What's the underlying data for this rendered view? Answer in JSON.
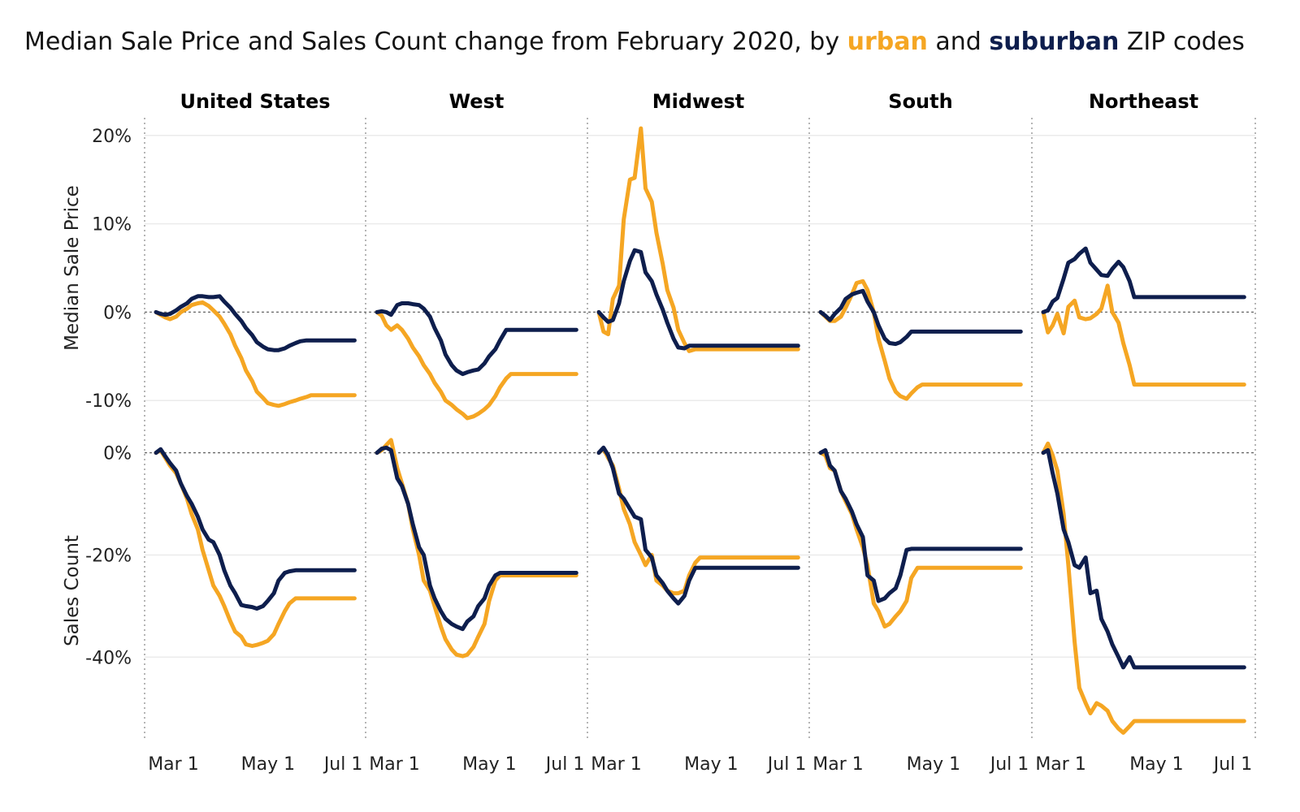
{
  "title": {
    "prefix": "Median Sale Price and Sales Count change from February 2020, by ",
    "urban_word": "urban",
    "middle": " and ",
    "suburban_word": "suburban",
    "suffix": " ZIP codes"
  },
  "colors": {
    "urban": "#F5A623",
    "suburban": "#0E1E4D",
    "grid": "#ebebeb",
    "zero_line": "#666666",
    "panel_divider": "#b5b5b5"
  },
  "chart_data": {
    "type": "line",
    "x_range": [
      "2020-02-24",
      "2020-07-05"
    ],
    "x_ticks": [
      "Mar 1",
      "May 1",
      "Jul 1"
    ],
    "x_tick_dates": [
      "2020-03-01",
      "2020-05-01",
      "2020-07-01"
    ],
    "facets": [
      "United States",
      "West",
      "Midwest",
      "South",
      "Northeast"
    ],
    "grid": true,
    "rows": [
      {
        "ylabel": "Median Sale Price",
        "ylim": [
          -12,
          22
        ],
        "y_ticks": [
          20,
          10,
          0,
          -10
        ],
        "y_tick_labels": [
          "20%",
          "10%",
          "0%",
          "-10%"
        ]
      },
      {
        "ylabel": "Sales Count",
        "ylim": [
          -56,
          2
        ],
        "y_ticks": [
          0,
          -20,
          -40
        ],
        "y_tick_labels": [
          "0%",
          "-20%",
          "-40%"
        ]
      }
    ],
    "dates": [
      "2020-02-24",
      "2020-02-27",
      "2020-03-01",
      "2020-03-04",
      "2020-03-08",
      "2020-03-11",
      "2020-03-15",
      "2020-03-18",
      "2020-03-22",
      "2020-03-25",
      "2020-03-29",
      "2020-04-01",
      "2020-04-05",
      "2020-04-08",
      "2020-04-12",
      "2020-04-15",
      "2020-04-19",
      "2020-04-22",
      "2020-04-26",
      "2020-04-29",
      "2020-05-03",
      "2020-05-06",
      "2020-05-10",
      "2020-05-13",
      "2020-05-17",
      "2020-05-20",
      "2020-05-24",
      "2020-05-27",
      "2020-05-31",
      "2020-06-03",
      "2020-06-07",
      "2020-06-10",
      "2020-06-14",
      "2020-06-17",
      "2020-06-21",
      "2020-06-24",
      "2020-06-28",
      "2020-07-01",
      "2020-07-05"
    ],
    "series": [
      {
        "facet": "United States",
        "row": "Median Sale Price",
        "name": "urban",
        "values": [
          0,
          -0.3,
          -0.6,
          -0.8,
          -0.5,
          0,
          0.4,
          0.8,
          1,
          1.1,
          0.7,
          0.2,
          -0.5,
          -1.3,
          -2.5,
          -3.8,
          -5.2,
          -6.6,
          -7.8,
          -9,
          -9.7,
          -10.3,
          -10.5,
          -10.6,
          -10.4,
          -10.2,
          -10,
          -9.8,
          -9.6,
          -9.4,
          -9.4,
          -9.4,
          -9.4,
          -9.4,
          -9.4,
          -9.4,
          -9.4,
          -9.4,
          -9.4
        ]
      },
      {
        "facet": "United States",
        "row": "Median Sale Price",
        "name": "suburban",
        "values": [
          0,
          -0.2,
          -0.3,
          -0.2,
          0.2,
          0.6,
          1,
          1.5,
          1.8,
          1.8,
          1.7,
          1.7,
          1.8,
          1.2,
          0.5,
          -0.2,
          -1,
          -1.8,
          -2.6,
          -3.4,
          -3.9,
          -4.2,
          -4.3,
          -4.3,
          -4.1,
          -3.8,
          -3.5,
          -3.3,
          -3.2,
          -3.2,
          -3.2,
          -3.2,
          -3.2,
          -3.2,
          -3.2,
          -3.2,
          -3.2,
          -3.2,
          -3.2
        ]
      },
      {
        "facet": "United States",
        "row": "Sales Count",
        "name": "urban",
        "values": [
          0,
          0.5,
          -1,
          -2.5,
          -4,
          -6,
          -9,
          -12,
          -15,
          -19,
          -23,
          -26,
          -28,
          -30,
          -33,
          -35,
          -36,
          -37.5,
          -37.8,
          -37.6,
          -37.2,
          -36.8,
          -35.5,
          -33.5,
          -31,
          -29.5,
          -28.5,
          -28.5,
          -28.5,
          -28.5,
          -28.5,
          -28.5,
          -28.5,
          -28.5,
          -28.5,
          -28.5,
          -28.5,
          -28.5,
          -28.5
        ]
      },
      {
        "facet": "United States",
        "row": "Sales Count",
        "name": "suburban",
        "values": [
          0,
          0.7,
          -0.7,
          -2,
          -3.5,
          -6,
          -8.5,
          -10,
          -12.5,
          -15,
          -17,
          -17.5,
          -20,
          -23,
          -26,
          -27.5,
          -29.8,
          -30,
          -30.2,
          -30.5,
          -30,
          -29,
          -27.5,
          -25,
          -23.5,
          -23.2,
          -23,
          -23,
          -23,
          -23,
          -23,
          -23,
          -23,
          -23,
          -23,
          -23,
          -23,
          -23,
          -23
        ]
      },
      {
        "facet": "West",
        "row": "Median Sale Price",
        "name": "urban",
        "values": [
          0,
          -0.4,
          -1.5,
          -2,
          -1.5,
          -2,
          -3,
          -4,
          -5,
          -6,
          -7,
          -8,
          -9,
          -10,
          -10.5,
          -11,
          -11.5,
          -12,
          -11.8,
          -11.5,
          -11,
          -10.5,
          -9.5,
          -8.5,
          -7.5,
          -7,
          -7,
          -7,
          -7,
          -7,
          -7,
          -7,
          -7,
          -7,
          -7,
          -7,
          -7,
          -7,
          -7
        ]
      },
      {
        "facet": "West",
        "row": "Median Sale Price",
        "name": "suburban",
        "values": [
          0,
          0.1,
          0,
          -0.3,
          0.8,
          1,
          1,
          0.9,
          0.8,
          0.4,
          -0.5,
          -1.8,
          -3.2,
          -4.8,
          -6,
          -6.6,
          -7,
          -6.8,
          -6.6,
          -6.5,
          -5.8,
          -5,
          -4.2,
          -3.2,
          -2,
          -2,
          -2,
          -2,
          -2,
          -2,
          -2,
          -2,
          -2,
          -2,
          -2,
          -2,
          -2,
          -2,
          -2
        ]
      },
      {
        "facet": "West",
        "row": "Sales Count",
        "name": "urban",
        "values": [
          0,
          0.5,
          1.5,
          2.5,
          -3,
          -6,
          -10,
          -15,
          -20,
          -25,
          -27,
          -30,
          -34,
          -36.5,
          -38.5,
          -39.5,
          -39.8,
          -39.5,
          -38,
          -36,
          -33.5,
          -29,
          -25,
          -24,
          -24,
          -24,
          -24,
          -24,
          -24,
          -24,
          -24,
          -24,
          -24,
          -24,
          -24,
          -24,
          -24,
          -24,
          -24
        ]
      },
      {
        "facet": "West",
        "row": "Sales Count",
        "name": "suburban",
        "values": [
          0,
          0.8,
          1,
          0.5,
          -5,
          -6.5,
          -10,
          -14,
          -18.5,
          -20,
          -26,
          -28.5,
          -31,
          -32.5,
          -33.5,
          -34,
          -34.5,
          -33,
          -32,
          -30,
          -28.5,
          -26,
          -24,
          -23.5,
          -23.5,
          -23.5,
          -23.5,
          -23.5,
          -23.5,
          -23.5,
          -23.5,
          -23.5,
          -23.5,
          -23.5,
          -23.5,
          -23.5,
          -23.5,
          -23.5,
          -23.5
        ]
      },
      {
        "facet": "Midwest",
        "row": "Median Sale Price",
        "name": "urban",
        "values": [
          0,
          -2.2,
          -2.5,
          1.5,
          3,
          10.5,
          15,
          15.2,
          20.8,
          14,
          12.5,
          9,
          5.5,
          2.5,
          0.5,
          -2,
          -3.5,
          -4.4,
          -4.2,
          -4.2,
          -4.2,
          -4.2,
          -4.2,
          -4.2,
          -4.2,
          -4.2,
          -4.2,
          -4.2,
          -4.2,
          -4.2,
          -4.2,
          -4.2,
          -4.2,
          -4.2,
          -4.2,
          -4.2,
          -4.2,
          -4.2,
          -4.2
        ]
      },
      {
        "facet": "Midwest",
        "row": "Median Sale Price",
        "name": "suburban",
        "values": [
          0,
          -0.6,
          -1.1,
          -0.9,
          1,
          3.5,
          5.8,
          7,
          6.8,
          4.5,
          3.5,
          2,
          0.3,
          -1.2,
          -3,
          -4,
          -4.1,
          -3.8,
          -3.8,
          -3.8,
          -3.8,
          -3.8,
          -3.8,
          -3.8,
          -3.8,
          -3.8,
          -3.8,
          -3.8,
          -3.8,
          -3.8,
          -3.8,
          -3.8,
          -3.8,
          -3.8,
          -3.8,
          -3.8,
          -3.8,
          -3.8,
          -3.8
        ]
      },
      {
        "facet": "Midwest",
        "row": "Sales Count",
        "name": "urban",
        "values": [
          0,
          0.8,
          -1,
          -2.5,
          -7,
          -11,
          -14,
          -17.5,
          -20,
          -22,
          -20,
          -25,
          -26,
          -27,
          -27.5,
          -27.5,
          -27,
          -24,
          -21.5,
          -20.5,
          -20.5,
          -20.5,
          -20.5,
          -20.5,
          -20.5,
          -20.5,
          -20.5,
          -20.5,
          -20.5,
          -20.5,
          -20.5,
          -20.5,
          -20.5,
          -20.5,
          -20.5,
          -20.5,
          -20.5,
          -20.5,
          -20.5
        ]
      },
      {
        "facet": "Midwest",
        "row": "Sales Count",
        "name": "suburban",
        "values": [
          0,
          1,
          -0.5,
          -3,
          -8,
          -9,
          -11,
          -12.5,
          -13,
          -19,
          -20.5,
          -24,
          -25.5,
          -27,
          -28.5,
          -29.5,
          -28,
          -25,
          -22.5,
          -22.5,
          -22.5,
          -22.5,
          -22.5,
          -22.5,
          -22.5,
          -22.5,
          -22.5,
          -22.5,
          -22.5,
          -22.5,
          -22.5,
          -22.5,
          -22.5,
          -22.5,
          -22.5,
          -22.5,
          -22.5,
          -22.5,
          -22.5
        ]
      },
      {
        "facet": "South",
        "row": "Median Sale Price",
        "name": "urban",
        "values": [
          0,
          -0.5,
          -1,
          -1,
          -0.5,
          0.5,
          2,
          3.3,
          3.5,
          2.5,
          0,
          -3,
          -5.5,
          -7.5,
          -9,
          -9.5,
          -9.8,
          -9.2,
          -8.5,
          -8.2,
          -8.2,
          -8.2,
          -8.2,
          -8.2,
          -8.2,
          -8.2,
          -8.2,
          -8.2,
          -8.2,
          -8.2,
          -8.2,
          -8.2,
          -8.2,
          -8.2,
          -8.2,
          -8.2,
          -8.2,
          -8.2,
          -8.2
        ]
      },
      {
        "facet": "South",
        "row": "Median Sale Price",
        "name": "suburban",
        "values": [
          0,
          -0.4,
          -0.9,
          -0.2,
          0.5,
          1.5,
          2,
          2.2,
          2.4,
          1.2,
          0,
          -1.5,
          -3,
          -3.5,
          -3.6,
          -3.4,
          -2.8,
          -2.2,
          -2.2,
          -2.2,
          -2.2,
          -2.2,
          -2.2,
          -2.2,
          -2.2,
          -2.2,
          -2.2,
          -2.2,
          -2.2,
          -2.2,
          -2.2,
          -2.2,
          -2.2,
          -2.2,
          -2.2,
          -2.2,
          -2.2,
          -2.2,
          -2.2
        ]
      },
      {
        "facet": "South",
        "row": "Sales Count",
        "name": "urban",
        "values": [
          0,
          -0.5,
          -3,
          -3.5,
          -7.5,
          -9.5,
          -12,
          -15,
          -18.5,
          -22,
          -29.5,
          -31,
          -34,
          -33.5,
          -32,
          -31,
          -29,
          -24.5,
          -22.5,
          -22.5,
          -22.5,
          -22.5,
          -22.5,
          -22.5,
          -22.5,
          -22.5,
          -22.5,
          -22.5,
          -22.5,
          -22.5,
          -22.5,
          -22.5,
          -22.5,
          -22.5,
          -22.5,
          -22.5,
          -22.5,
          -22.5,
          -22.5
        ]
      },
      {
        "facet": "South",
        "row": "Sales Count",
        "name": "suburban",
        "values": [
          0,
          0.5,
          -2.5,
          -3.5,
          -7.5,
          -9,
          -11.5,
          -14,
          -16.5,
          -24,
          -25,
          -29,
          -28.5,
          -27.5,
          -26.5,
          -24,
          -19,
          -18.8,
          -18.8,
          -18.8,
          -18.8,
          -18.8,
          -18.8,
          -18.8,
          -18.8,
          -18.8,
          -18.8,
          -18.8,
          -18.8,
          -18.8,
          -18.8,
          -18.8,
          -18.8,
          -18.8,
          -18.8,
          -18.8,
          -18.8,
          -18.8,
          -18.8
        ]
      },
      {
        "facet": "Northeast",
        "row": "Median Sale Price",
        "name": "urban",
        "values": [
          0,
          -2.3,
          -1.5,
          -0.2,
          -2.4,
          0.6,
          1.3,
          -0.6,
          -0.8,
          -0.7,
          -0.2,
          0.4,
          3,
          0,
          -1.2,
          -3.5,
          -6,
          -8.2,
          -8.2,
          -8.2,
          -8.2,
          -8.2,
          -8.2,
          -8.2,
          -8.2,
          -8.2,
          -8.2,
          -8.2,
          -8.2,
          -8.2,
          -8.2,
          -8.2,
          -8.2,
          -8.2,
          -8.2,
          -8.2,
          -8.2,
          -8.2,
          -8.2
        ]
      },
      {
        "facet": "Northeast",
        "row": "Median Sale Price",
        "name": "suburban",
        "values": [
          0,
          0.2,
          1.2,
          1.6,
          3.8,
          5.6,
          6,
          6.6,
          7.2,
          5.6,
          4.8,
          4.2,
          4.1,
          4.9,
          5.7,
          5.1,
          3.5,
          1.7,
          1.7,
          1.7,
          1.7,
          1.7,
          1.7,
          1.7,
          1.7,
          1.7,
          1.7,
          1.7,
          1.7,
          1.7,
          1.7,
          1.7,
          1.7,
          1.7,
          1.7,
          1.7,
          1.7,
          1.7,
          1.7
        ]
      },
      {
        "facet": "Northeast",
        "row": "Sales Count",
        "name": "urban",
        "values": [
          0,
          1.8,
          -0.5,
          -3.5,
          -12,
          -22,
          -37,
          -46,
          -49,
          -51,
          -49,
          -49.5,
          -50.5,
          -52.5,
          -54,
          -54.8,
          -53.5,
          -52.5,
          -52.5,
          -52.5,
          -52.5,
          -52.5,
          -52.5,
          -52.5,
          -52.5,
          -52.5,
          -52.5,
          -52.5,
          -52.5,
          -52.5,
          -52.5,
          -52.5,
          -52.5,
          -52.5,
          -52.5,
          -52.5,
          -52.5,
          -52.5,
          -52.5
        ]
      },
      {
        "facet": "Northeast",
        "row": "Sales Count",
        "name": "suburban",
        "values": [
          0,
          0.5,
          -4,
          -8,
          -15,
          -17.5,
          -22,
          -22.5,
          -20.5,
          -27.5,
          -27,
          -32.5,
          -35,
          -37.5,
          -40,
          -42,
          -40,
          -42,
          -42,
          -42,
          -42,
          -42,
          -42,
          -42,
          -42,
          -42,
          -42,
          -42,
          -42,
          -42,
          -42,
          -42,
          -42,
          -42,
          -42,
          -42,
          -42,
          -42,
          -42
        ]
      }
    ]
  }
}
